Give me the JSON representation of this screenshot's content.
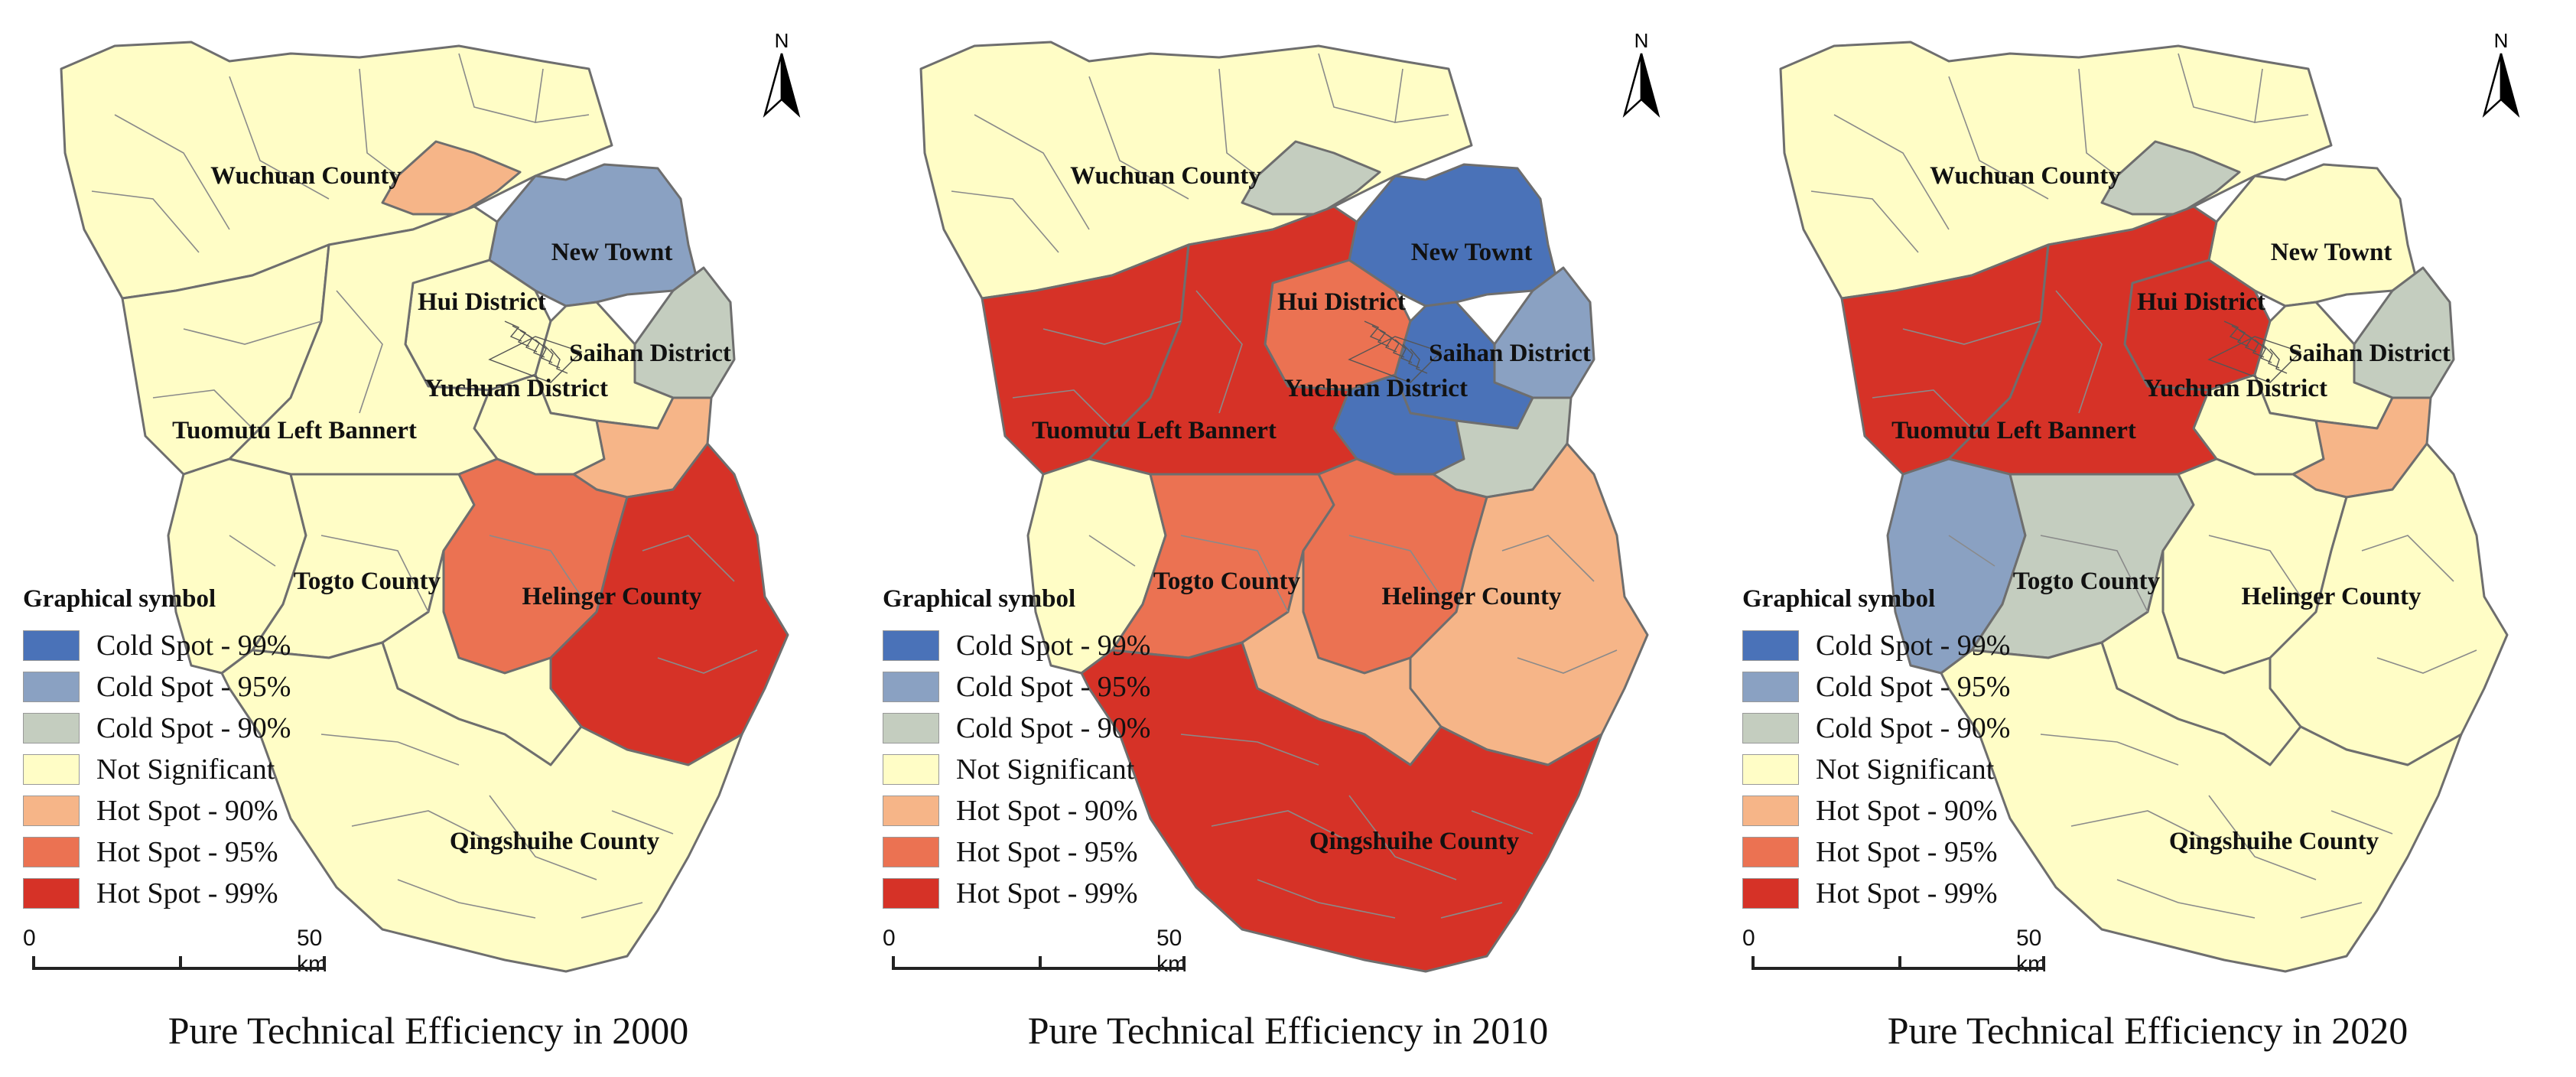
{
  "colors": {
    "cold99": "#4a72b8",
    "cold95": "#8aa1c2",
    "cold90": "#c4cdbf",
    "ns": "#fffdc6",
    "hot90": "#f6b588",
    "hot95": "#eb7252",
    "hot99": "#d63227"
  },
  "legend": {
    "title": "Graphical symbol",
    "items": [
      {
        "key": "cold99",
        "label": "Cold Spot - 99%"
      },
      {
        "key": "cold95",
        "label": "Cold Spot - 95%"
      },
      {
        "key": "cold90",
        "label": "Cold Spot - 90%"
      },
      {
        "key": "ns",
        "label": "Not Significant"
      },
      {
        "key": "hot90",
        "label": "Hot Spot - 90%"
      },
      {
        "key": "hot95",
        "label": "Hot Spot - 95%"
      },
      {
        "key": "hot99",
        "label": "Hot Spot - 99%"
      }
    ]
  },
  "scale_bar": {
    "start": "0",
    "end": "50 km"
  },
  "north_arrow": {
    "label": "N",
    "icon": "north-arrow-icon"
  },
  "county_labels": {
    "wuchuan": "Wuchuan County",
    "newtown": "New Townt",
    "hui": "Hui District",
    "saihan": "Saihan District",
    "yuchuan": "Yuchuan District",
    "tuomutu": "Tuomutu Left Bannert",
    "togto": "Togto County",
    "helinger": "Helinger County",
    "qingshuihe": "Qingshuihe County"
  },
  "panels": [
    {
      "title": "Pure Technical Efficiency in 2000",
      "classes": {
        "wuchuan": "ns",
        "wuchuan_inner": "hot90",
        "newtown": "cold95",
        "saihan_east": "cold90",
        "saihan": "ns",
        "hui": "ns",
        "yuchuan": "ns",
        "yuchuan_south": "hot90",
        "tuomutu": "ns",
        "tuomutu_west": "ns",
        "togto": "ns",
        "togto_west": "ns",
        "helinger_west": "hot95",
        "helinger": "hot99",
        "qingshuihe_north": "ns",
        "qingshuihe": "ns"
      }
    },
    {
      "title": "Pure Technical Efficiency in 2010",
      "classes": {
        "wuchuan": "ns",
        "wuchuan_inner": "cold90",
        "newtown": "cold99",
        "saihan_east": "cold95",
        "saihan": "cold99",
        "hui": "hot95",
        "yuchuan": "cold99",
        "yuchuan_south": "cold90",
        "tuomutu": "hot99",
        "tuomutu_west": "hot99",
        "togto": "hot95",
        "togto_west": "ns",
        "helinger_west": "hot95",
        "helinger": "hot90",
        "qingshuihe_north": "hot90",
        "qingshuihe": "hot99"
      }
    },
    {
      "title": "Pure Technical Efficiency in 2020",
      "classes": {
        "wuchuan": "ns",
        "wuchuan_inner": "cold90",
        "newtown": "ns",
        "saihan_east": "cold90",
        "saihan": "ns",
        "hui": "hot99",
        "yuchuan": "ns",
        "yuchuan_south": "hot90",
        "tuomutu": "hot99",
        "tuomutu_west": "hot99",
        "togto": "cold90",
        "togto_west": "cold95",
        "helinger_west": "ns",
        "helinger": "ns",
        "qingshuihe_north": "ns",
        "qingshuihe": "ns"
      }
    }
  ]
}
